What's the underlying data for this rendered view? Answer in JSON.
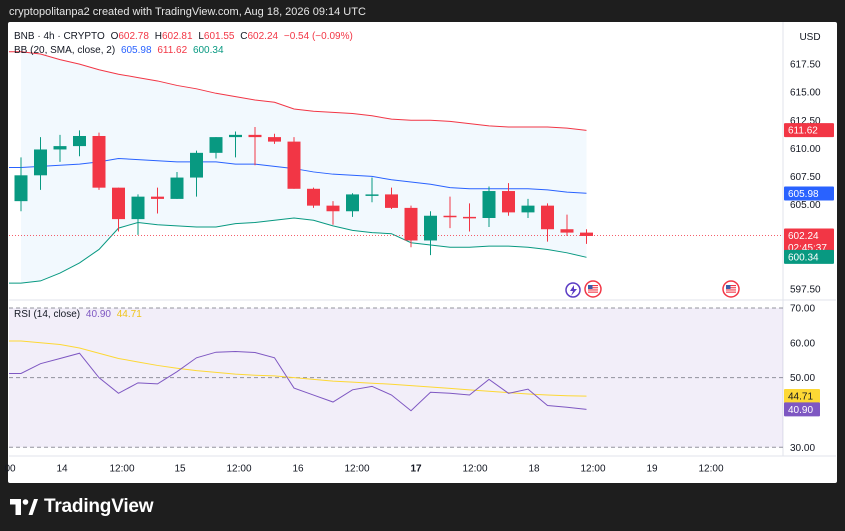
{
  "attribution": "cryptopolitanpa2 created with TradingView.com, Aug 18, 2026 09:14 UTC",
  "brand": "TradingView",
  "legend": {
    "symbol": "BNB · 4h · CRYPTO",
    "open_label": "O",
    "open": "602.78",
    "high_label": "H",
    "high": "602.81",
    "low_label": "L",
    "low": "601.55",
    "close_label": "C",
    "close": "602.24",
    "change": "−0.54 (−0.09%)",
    "bb_label": "BB (20, SMA, close, 2)",
    "bb_basis": "605.98",
    "bb_upper": "611.62",
    "bb_lower": "600.34",
    "rsi_label": "RSI (14, close)",
    "rsi_value": "40.90",
    "rsi_ma": "44.71"
  },
  "currency": "USD",
  "colors": {
    "up": "#089981",
    "down": "#f23645",
    "bb_upper": "#f23645",
    "bb_basis": "#2962ff",
    "bb_lower": "#089981",
    "bb_fill": "#2196f3",
    "rsi": "#7e57c2",
    "rsi_ma": "#fdd835",
    "rsi_fill": "#7e57c2",
    "text": "#131722",
    "border": "#e0e3eb"
  },
  "chart_data": [
    {
      "type": "candlestick",
      "x_tick_labels": [
        "00",
        "14",
        "12:00",
        "15",
        "12:00",
        "16",
        "12:00",
        "17",
        "12:00",
        "18",
        "12:00",
        "19",
        "12:00"
      ],
      "ylim": [
        596.5,
        619.2
      ],
      "y_ticks": [
        "617.50",
        "615.00",
        "612.50",
        "610.00",
        "607.50",
        "605.00",
        "597.50"
      ],
      "price_labels": [
        {
          "value": 611.62,
          "text": "611.62",
          "role": "bb_upper"
        },
        {
          "value": 605.98,
          "text": "605.98",
          "role": "bb_basis"
        },
        {
          "value": 602.24,
          "text": "602.24",
          "role": "last"
        },
        {
          "value": 600.34,
          "text": "600.34",
          "role": "bb_lower"
        }
      ],
      "countdown": "02:45:37",
      "candles": [
        {
          "o": 605.3,
          "h": 609.2,
          "l": 604.4,
          "c": 607.6
        },
        {
          "o": 607.6,
          "h": 611.0,
          "l": 606.3,
          "c": 609.9
        },
        {
          "o": 609.9,
          "h": 611.2,
          "l": 608.8,
          "c": 610.2
        },
        {
          "o": 610.2,
          "h": 611.6,
          "l": 609.3,
          "c": 611.1
        },
        {
          "o": 611.1,
          "h": 611.4,
          "l": 606.3,
          "c": 606.5
        },
        {
          "o": 606.5,
          "h": 606.5,
          "l": 602.6,
          "c": 603.7
        },
        {
          "o": 603.7,
          "h": 605.9,
          "l": 602.3,
          "c": 605.7
        },
        {
          "o": 605.7,
          "h": 606.5,
          "l": 604.2,
          "c": 605.5
        },
        {
          "o": 605.5,
          "h": 607.9,
          "l": 605.5,
          "c": 607.4
        },
        {
          "o": 607.4,
          "h": 609.8,
          "l": 605.7,
          "c": 609.6
        },
        {
          "o": 609.6,
          "h": 611.0,
          "l": 609.1,
          "c": 611.0
        },
        {
          "o": 611.0,
          "h": 611.5,
          "l": 609.2,
          "c": 611.2
        },
        {
          "o": 611.2,
          "h": 611.9,
          "l": 608.5,
          "c": 611.0
        },
        {
          "o": 611.0,
          "h": 611.3,
          "l": 610.4,
          "c": 610.6
        },
        {
          "o": 610.6,
          "h": 611.0,
          "l": 606.4,
          "c": 606.4
        },
        {
          "o": 606.4,
          "h": 606.5,
          "l": 604.7,
          "c": 604.9
        },
        {
          "o": 604.9,
          "h": 605.3,
          "l": 603.2,
          "c": 604.4
        },
        {
          "o": 604.4,
          "h": 606.0,
          "l": 603.9,
          "c": 605.9
        },
        {
          "o": 605.9,
          "h": 607.4,
          "l": 605.2,
          "c": 605.9
        },
        {
          "o": 605.9,
          "h": 606.5,
          "l": 604.6,
          "c": 604.7
        },
        {
          "o": 604.7,
          "h": 604.9,
          "l": 601.2,
          "c": 601.8
        },
        {
          "o": 601.8,
          "h": 604.4,
          "l": 600.5,
          "c": 604.0
        },
        {
          "o": 604.0,
          "h": 605.7,
          "l": 602.9,
          "c": 603.9
        },
        {
          "o": 603.9,
          "h": 605.1,
          "l": 602.6,
          "c": 603.8
        },
        {
          "o": 603.8,
          "h": 606.6,
          "l": 603.0,
          "c": 606.2
        },
        {
          "o": 606.2,
          "h": 606.9,
          "l": 604.0,
          "c": 604.3
        },
        {
          "o": 604.3,
          "h": 605.5,
          "l": 603.8,
          "c": 604.9
        },
        {
          "o": 604.9,
          "h": 605.1,
          "l": 601.7,
          "c": 602.8
        },
        {
          "o": 602.8,
          "h": 604.1,
          "l": 602.2,
          "c": 602.5
        },
        {
          "o": 602.5,
          "h": 602.8,
          "l": 601.5,
          "c": 602.2
        }
      ],
      "series": [
        {
          "name": "BB upper",
          "values": [
            618.6,
            618.4,
            617.9,
            617.5,
            617.0,
            616.6,
            616.3,
            616.0,
            615.6,
            615.3,
            614.9,
            614.6,
            614.3,
            614.1,
            613.5,
            613.3,
            613.2,
            613.1,
            612.9,
            612.6,
            612.5,
            612.5,
            612.4,
            612.2,
            612.0,
            611.9,
            611.9,
            611.9,
            611.8,
            611.6
          ]
        },
        {
          "name": "BB basis",
          "values": [
            608.3,
            608.4,
            608.5,
            608.6,
            608.8,
            609.1,
            609.0,
            608.9,
            608.8,
            608.8,
            608.8,
            608.6,
            608.6,
            608.4,
            608.2,
            607.9,
            607.7,
            607.6,
            607.5,
            607.2,
            607.0,
            606.8,
            606.5,
            606.4,
            606.4,
            606.4,
            606.4,
            606.3,
            606.1,
            606.0
          ]
        },
        {
          "name": "BB lower",
          "values": [
            598.0,
            598.2,
            598.9,
            599.8,
            601.0,
            602.9,
            603.4,
            603.2,
            603.1,
            603.0,
            603.0,
            603.3,
            603.4,
            603.6,
            603.8,
            603.6,
            603.1,
            602.7,
            602.5,
            602.4,
            601.6,
            601.4,
            601.2,
            601.2,
            601.3,
            601.3,
            601.2,
            601.0,
            600.7,
            600.3
          ]
        }
      ],
      "markers": [
        "lightning-flag-icon",
        "us-flag-icon",
        "us-flag-icon"
      ]
    },
    {
      "type": "line",
      "ylim": [
        27.5,
        72
      ],
      "y_ticks": [
        "70.00",
        "60.00",
        "50.00",
        "30.00"
      ],
      "bands": {
        "upper": 70,
        "middle": 50,
        "lower": 30
      },
      "price_labels": [
        {
          "value": 44.71,
          "text": "44.71",
          "role": "rsi_ma"
        },
        {
          "value": 40.9,
          "text": "40.90",
          "role": "rsi"
        }
      ],
      "series": [
        {
          "name": "RSI",
          "values": [
            51.2,
            54.0,
            55.5,
            57.0,
            50.0,
            45.5,
            48.5,
            48.2,
            51.7,
            55.7,
            57.3,
            57.5,
            57.2,
            55.7,
            47.0,
            45.0,
            43.0,
            46.5,
            47.5,
            45.0,
            40.5,
            45.8,
            45.5,
            45.0,
            49.5,
            45.5,
            46.7,
            42.0,
            41.5,
            40.9
          ]
        },
        {
          "name": "RSI-based MA",
          "values": [
            60.5,
            60.0,
            59.5,
            58.5,
            57.0,
            55.5,
            54.5,
            53.5,
            52.7,
            52.0,
            51.5,
            51.0,
            50.7,
            50.5,
            50.0,
            49.5,
            49.0,
            48.7,
            48.4,
            48.1,
            47.7,
            47.3,
            46.9,
            46.5,
            46.1,
            45.7,
            45.3,
            45.0,
            44.8,
            44.7
          ]
        }
      ]
    }
  ]
}
